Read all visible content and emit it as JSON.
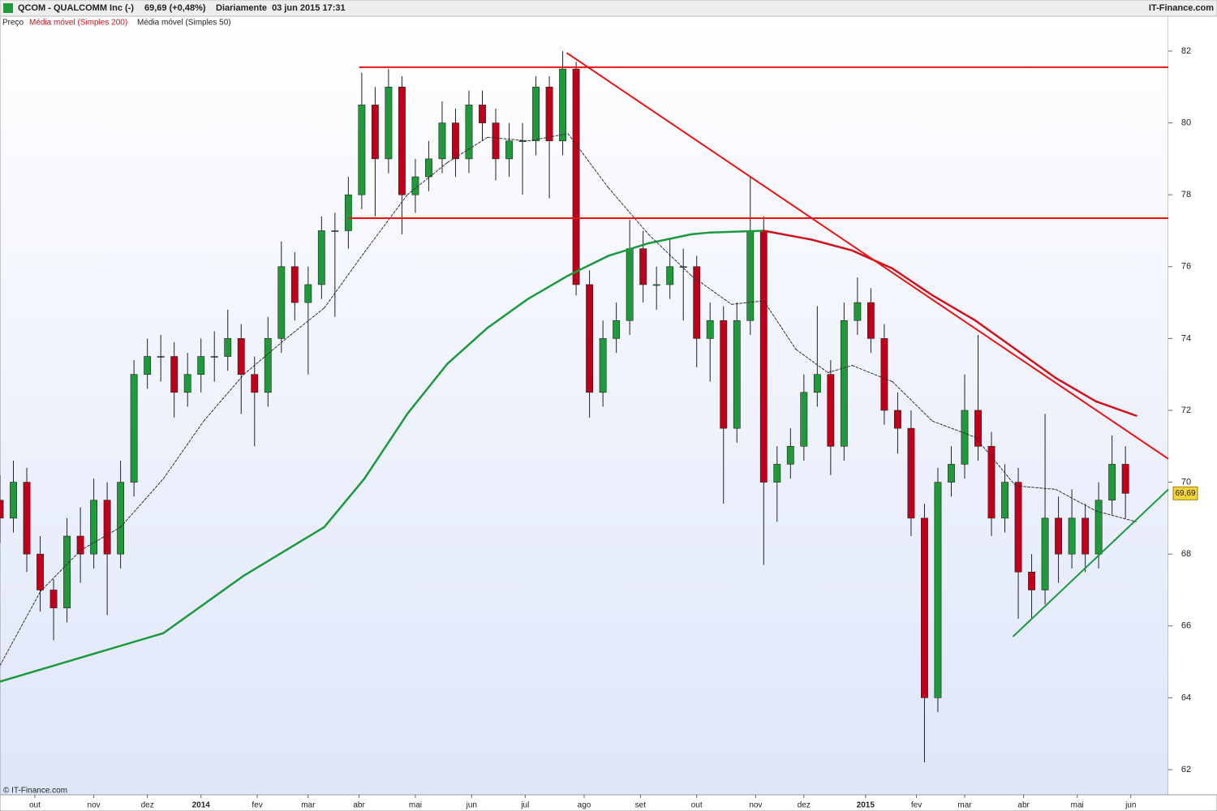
{
  "chart_data": {
    "type": "candlestick",
    "title": "QCOM - QUALCOMM Inc (-)",
    "quote": "69,69 (+0,48%)",
    "period": "Diariamente  03 jun 2015 17:31",
    "brand": "IT-Finance.com",
    "copyright": "© IT-Finance.com",
    "price_name": "Preço",
    "up_color": "#1f9a3a",
    "down_color": "#c0001a",
    "xlim": [
      0,
      436
    ],
    "ylim": [
      61.3,
      82.97
    ],
    "yticks": [
      62,
      64,
      66,
      68,
      70,
      72,
      74,
      76,
      78,
      80,
      82
    ],
    "xticks": [
      {
        "value": 13,
        "label": "out"
      },
      {
        "value": 35,
        "label": "nov"
      },
      {
        "value": 55,
        "label": "dez"
      },
      {
        "value": 75,
        "label": "2014"
      },
      {
        "value": 96,
        "label": "fev"
      },
      {
        "value": 115,
        "label": "mar"
      },
      {
        "value": 134,
        "label": "abr"
      },
      {
        "value": 155,
        "label": "mai"
      },
      {
        "value": 176,
        "label": "jun"
      },
      {
        "value": 196,
        "label": "jul"
      },
      {
        "value": 218,
        "label": "ago"
      },
      {
        "value": 239,
        "label": "set"
      },
      {
        "value": 260,
        "label": "out"
      },
      {
        "value": 282,
        "label": "nov"
      },
      {
        "value": 300,
        "label": "dez"
      },
      {
        "value": 323,
        "label": "2015"
      },
      {
        "value": 342,
        "label": "fev"
      },
      {
        "value": 360,
        "label": "mar"
      },
      {
        "value": 382,
        "label": "abr"
      },
      {
        "value": 402,
        "label": "mai"
      },
      {
        "value": 422,
        "label": "jun"
      }
    ],
    "last_price": {
      "value": 69.69,
      "label": "69,69"
    },
    "x": [
      0,
      5,
      10,
      15,
      20,
      25,
      30,
      35,
      40,
      45,
      50,
      55,
      60,
      65,
      70,
      75,
      80,
      85,
      90,
      95,
      100,
      105,
      110,
      115,
      120,
      125,
      130,
      135,
      140,
      145,
      150,
      155,
      160,
      165,
      170,
      175,
      180,
      185,
      190,
      195,
      200,
      205,
      210,
      215,
      220,
      225,
      230,
      235,
      240,
      245,
      250,
      255,
      260,
      265,
      270,
      275,
      280,
      285,
      290,
      295,
      300,
      305,
      310,
      315,
      320,
      325,
      330,
      335,
      340,
      345,
      350,
      355,
      360,
      365,
      370,
      375,
      380,
      385,
      390,
      395,
      400,
      405,
      410,
      415,
      420
    ],
    "ohlc": [
      [
        69.5,
        70.2,
        68.3,
        69
      ],
      [
        69,
        70.6,
        68.6,
        70
      ],
      [
        70,
        70.4,
        67.5,
        68
      ],
      [
        68,
        68.5,
        66.4,
        67
      ],
      [
        67,
        67.3,
        65.6,
        66.5
      ],
      [
        66.5,
        69,
        66.1,
        68.5
      ],
      [
        68.5,
        69.3,
        67.2,
        68
      ],
      [
        68,
        70.1,
        67.6,
        69.5
      ],
      [
        69.5,
        70,
        66.3,
        68
      ],
      [
        68,
        70.6,
        67.6,
        70
      ],
      [
        70,
        73.4,
        69.6,
        73
      ],
      [
        73,
        74,
        72.6,
        73.5
      ],
      [
        73.5,
        74.1,
        72.8,
        73.5
      ],
      [
        73.5,
        73.9,
        71.8,
        72.5
      ],
      [
        72.5,
        73.6,
        72.1,
        73
      ],
      [
        73,
        74,
        72.5,
        73.5
      ],
      [
        73.5,
        74.2,
        72.8,
        73.5
      ],
      [
        73.5,
        74.8,
        73.1,
        74
      ],
      [
        74,
        74.4,
        71.9,
        73
      ],
      [
        73,
        73.5,
        71,
        72.5
      ],
      [
        72.5,
        74.6,
        72.1,
        74
      ],
      [
        74,
        76.7,
        73.6,
        76
      ],
      [
        76,
        76.4,
        74.5,
        75
      ],
      [
        75,
        76,
        73,
        75.5
      ],
      [
        75.5,
        77.4,
        75.1,
        77
      ],
      [
        77,
        77.5,
        74.6,
        77
      ],
      [
        77,
        78.5,
        76.5,
        78
      ],
      [
        78,
        81.4,
        77.6,
        80.5
      ],
      [
        80.5,
        81,
        77.4,
        79
      ],
      [
        79,
        81.5,
        78.6,
        81
      ],
      [
        81,
        81.3,
        76.9,
        78
      ],
      [
        78,
        79,
        77.5,
        78.5
      ],
      [
        78.5,
        79.5,
        78.1,
        79
      ],
      [
        79,
        80.6,
        78.6,
        80
      ],
      [
        80,
        80.4,
        78.5,
        79
      ],
      [
        79,
        80.9,
        78.6,
        80.5
      ],
      [
        80.5,
        80.9,
        79.5,
        80
      ],
      [
        80,
        80.4,
        78.4,
        79
      ],
      [
        79,
        80,
        78.5,
        79.5
      ],
      [
        79.5,
        80,
        78,
        79.5
      ],
      [
        79.5,
        81.3,
        79.1,
        81
      ],
      [
        81,
        81.3,
        77.9,
        79.5
      ],
      [
        79.5,
        82,
        79.1,
        81.5
      ],
      [
        81.5,
        81.7,
        75.2,
        75.5
      ],
      [
        75.5,
        75.9,
        71.8,
        72.5
      ],
      [
        72.5,
        74.5,
        72.1,
        74
      ],
      [
        74,
        75,
        73.6,
        74.5
      ],
      [
        74.5,
        77.3,
        74.1,
        76.5
      ],
      [
        76.5,
        77,
        75,
        75.5
      ],
      [
        75.5,
        76,
        74.8,
        75.5
      ],
      [
        75.5,
        76.8,
        75.1,
        76
      ],
      [
        76,
        76.5,
        74.5,
        76
      ],
      [
        76,
        76.3,
        73.2,
        74
      ],
      [
        74,
        75,
        72.8,
        74.5
      ],
      [
        74.5,
        74.9,
        69.4,
        71.5
      ],
      [
        71.5,
        75,
        71.1,
        74.5
      ],
      [
        74.5,
        78.5,
        74.1,
        77
      ],
      [
        77,
        77.4,
        67.7,
        70
      ],
      [
        70,
        71,
        68.9,
        70.5
      ],
      [
        70.5,
        71.5,
        70.1,
        71
      ],
      [
        71,
        73,
        70.6,
        72.5
      ],
      [
        72.5,
        74.9,
        72.1,
        73
      ],
      [
        73,
        73.4,
        70.2,
        71
      ],
      [
        71,
        75,
        70.6,
        74.5
      ],
      [
        74.5,
        75.7,
        74.1,
        75
      ],
      [
        75,
        75.4,
        73.6,
        74
      ],
      [
        74,
        74.4,
        71.6,
        72
      ],
      [
        72,
        72.5,
        70.8,
        71.5
      ],
      [
        71.5,
        72,
        68.5,
        69
      ],
      [
        69,
        69.4,
        62.2,
        64
      ],
      [
        64,
        70.4,
        63.6,
        70
      ],
      [
        70,
        71,
        69.6,
        70.5
      ],
      [
        70.5,
        73,
        70.1,
        72
      ],
      [
        72,
        74.1,
        70.6,
        71
      ],
      [
        71,
        71.4,
        68.5,
        69
      ],
      [
        69,
        70.5,
        68.6,
        70
      ],
      [
        70,
        70.4,
        66.2,
        67.5
      ],
      [
        67.5,
        68,
        66.2,
        67
      ],
      [
        67,
        71.9,
        66.6,
        69
      ],
      [
        69,
        69.6,
        67.2,
        68
      ],
      [
        68,
        69.8,
        67.6,
        69
      ],
      [
        69,
        69.4,
        67.5,
        68
      ],
      [
        68,
        70,
        67.6,
        69.5
      ],
      [
        69.5,
        71.3,
        69.1,
        70.5
      ],
      [
        70.5,
        71,
        69,
        69.69
      ]
    ],
    "series": [
      {
        "name": "Média móvel (Simples 200)",
        "color": "#1a9a3c",
        "falling_color": "#d0101a",
        "width": 2.5,
        "dashed": false,
        "x": [
          0,
          61,
          91,
          121,
          136,
          152,
          167,
          182,
          197,
          212,
          227,
          242,
          258,
          265,
          285,
          303,
          318,
          333,
          348,
          364,
          379,
          394,
          409,
          424
        ],
        "values": [
          64.45,
          65.8,
          67.4,
          68.75,
          70.1,
          71.9,
          73.3,
          74.3,
          75.1,
          75.75,
          76.3,
          76.65,
          76.9,
          76.95,
          77.0,
          76.75,
          76.45,
          75.95,
          75.2,
          74.5,
          73.7,
          72.9,
          72.25,
          71.85
        ]
      },
      {
        "name": "Média móvel (Simples 50)",
        "color": "#333333",
        "falling_color": "#333333",
        "width": 1,
        "dashed": true,
        "x": [
          0,
          15,
          30,
          45,
          61,
          76,
          91,
          106,
          121,
          136,
          152,
          167,
          182,
          197,
          212,
          227,
          242,
          258,
          273,
          285,
          297,
          309,
          318,
          333,
          348,
          364,
          379,
          394,
          409,
          424
        ],
        "values": [
          64.9,
          66.95,
          68.1,
          68.75,
          70.1,
          71.7,
          73.0,
          73.95,
          74.85,
          76.4,
          78.0,
          78.9,
          79.6,
          79.5,
          79.7,
          78.2,
          76.9,
          75.75,
          74.95,
          75.05,
          73.7,
          73.05,
          73.25,
          72.8,
          71.7,
          71.25,
          69.9,
          69.8,
          69.2,
          68.9
        ]
      }
    ],
    "trendlines": [
      {
        "color": "#ee1111",
        "x": [
          134,
          436
        ],
        "y": [
          81.55,
          81.55
        ]
      },
      {
        "color": "#ee1111",
        "x": [
          130,
          436
        ],
        "y": [
          77.35,
          77.35
        ]
      },
      {
        "color": "#ee1111",
        "x": [
          211.5,
          436
        ],
        "y": [
          81.95,
          70.65
        ]
      },
      {
        "color": "#1a9a3c",
        "x": [
          378,
          436
        ],
        "y": [
          65.7,
          69.8
        ]
      }
    ]
  }
}
